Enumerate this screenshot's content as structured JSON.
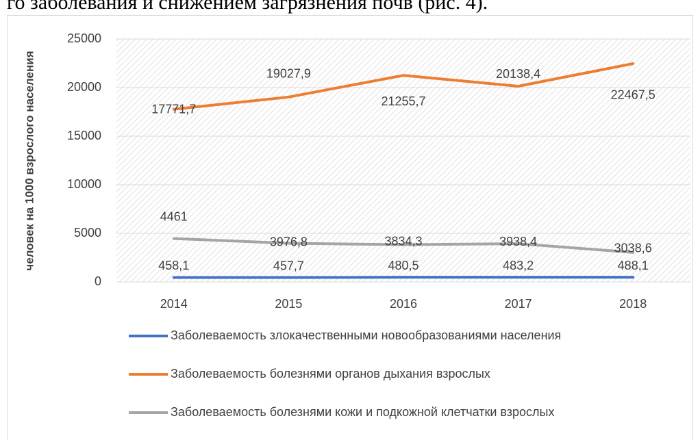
{
  "page_text": "го заболевания и снижением загрязнения почв (рис. 4).",
  "chart_data": {
    "type": "line",
    "ylabel": "человек на 1000 взрослого населения",
    "categories": [
      "2014",
      "2015",
      "2016",
      "2017",
      "2018"
    ],
    "ylim": [
      0,
      25000
    ],
    "yticks": [
      0,
      5000,
      10000,
      15000,
      20000,
      25000
    ],
    "grid": true,
    "legend": "bottom",
    "series": [
      {
        "name": "Заболеваемость злокачественными новообразованиями населения",
        "color": "#4472c4",
        "values": [
          458.1,
          457.7,
          480.5,
          483.2,
          488.1
        ],
        "value_labels": [
          "458,1",
          "457,7",
          "480,5",
          "483,2",
          "488,1"
        ]
      },
      {
        "name": "Заболеваемость болезнями органов дыхания взрослых",
        "color": "#ed7d31",
        "values": [
          17771.7,
          19027.9,
          21255.7,
          20138.4,
          22467.5
        ],
        "value_labels": [
          "17771,7",
          "19027,9",
          "21255,7",
          "20138,4",
          "22467,5"
        ]
      },
      {
        "name": "Заболеваемость болезнями кожи и подкожной клетчатки взрослых",
        "color": "#a5a5a5",
        "values": [
          4461,
          3976.8,
          3834.3,
          3938.4,
          3038.6
        ],
        "value_labels": [
          "4461",
          "3976,8",
          "3834,3",
          "3938,4",
          "3038,6"
        ]
      }
    ]
  }
}
